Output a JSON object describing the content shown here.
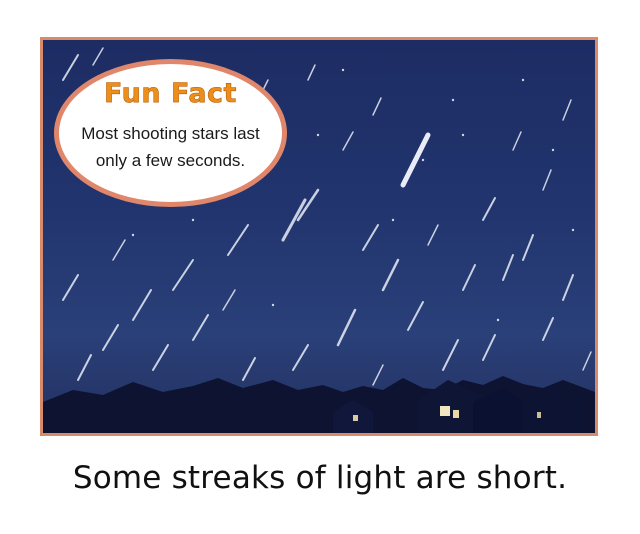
{
  "fun_fact": {
    "title": "Fun Fact",
    "line1": "Most shooting stars last",
    "line2": "only a few seconds."
  },
  "caption": "Some streaks of light are short.",
  "colors": {
    "frame_border": "#d98a6a",
    "bubble_border": "#e0866a",
    "title_orange": "#ec8f1a",
    "sky": "#22356f"
  }
}
